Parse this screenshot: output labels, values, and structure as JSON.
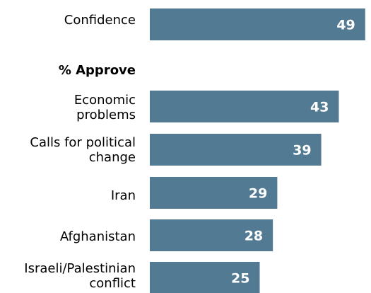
{
  "chart_data": {
    "type": "bar",
    "orientation": "horizontal",
    "section_heading": "% Approve",
    "categories": [
      "Confidence",
      "Economic problems",
      "Calls for political change",
      "Iran",
      "Afghanistan",
      "Israeli/Palestinian conflict"
    ],
    "label_lines": [
      [
        "Confidence"
      ],
      [
        "Economic",
        "problems"
      ],
      [
        "Calls for political",
        "change"
      ],
      [
        "Iran"
      ],
      [
        "Afghanistan"
      ],
      [
        "Israeli/Palestinian",
        "conflict"
      ]
    ],
    "values": [
      49,
      43,
      39,
      29,
      28,
      25
    ],
    "data_labels": [
      "49",
      "43",
      "39",
      "29",
      "28",
      "25"
    ],
    "xlim": [
      0,
      50
    ],
    "grid": false,
    "legend": "none",
    "colors": {
      "bar": "#527b93",
      "value_text": "#ffffff",
      "label_text": "#000000"
    }
  }
}
